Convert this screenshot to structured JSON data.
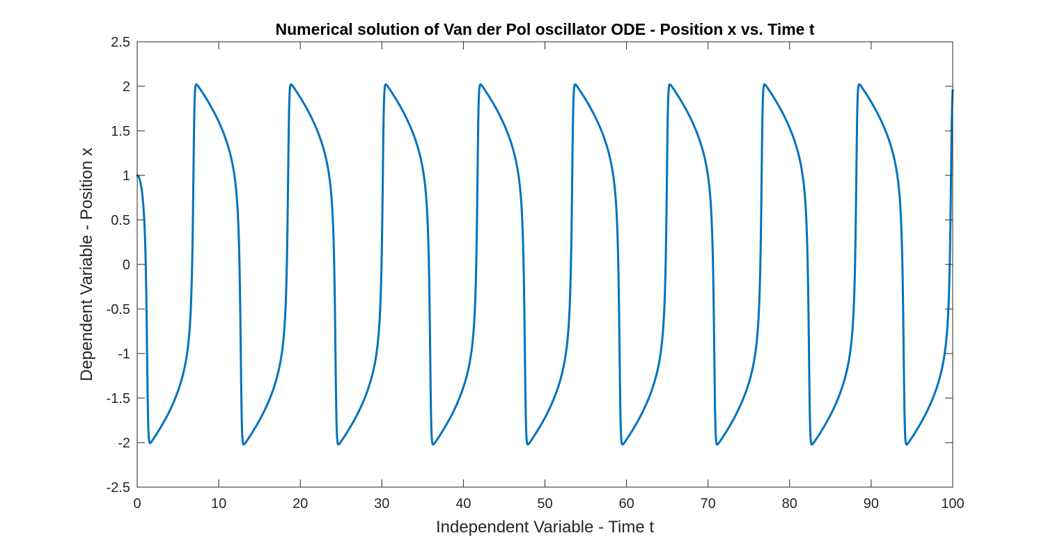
{
  "chart_data": {
    "type": "line",
    "title": "Numerical solution of Van der Pol oscillator ODE - Position x vs. Time t",
    "xlabel": "Independent Variable - Time t",
    "ylabel": "Dependent Variable - Position x",
    "xlim": [
      0,
      100
    ],
    "ylim": [
      -2.5,
      2.5
    ],
    "x_ticks": [
      0,
      10,
      20,
      30,
      40,
      50,
      60,
      70,
      80,
      90,
      100
    ],
    "y_ticks": [
      -2.5,
      -2,
      -1.5,
      -1,
      -0.5,
      0,
      0.5,
      1,
      1.5,
      2,
      2.5
    ],
    "x_tick_labels": [
      "0",
      "10",
      "20",
      "30",
      "40",
      "50",
      "60",
      "70",
      "80",
      "90",
      "100"
    ],
    "y_tick_labels": [
      "-2.5",
      "-2",
      "-1.5",
      "-1",
      "-0.5",
      "0",
      "0.5",
      "1",
      "1.5",
      "2",
      "2.5"
    ],
    "grid": false,
    "box": true,
    "colors": {
      "series": "#0072BD",
      "axes": "#262626",
      "background": "#ffffff"
    },
    "series": [
      {
        "mu": 5,
        "initial_conditions": {
          "x0": 1,
          "v0": 0
        },
        "t_range": [
          0,
          100
        ],
        "points": [
          [
            0,
            1
          ],
          [
            0.7,
            -2.3
          ],
          [
            8.7,
            2.02
          ],
          [
            14.5,
            -2.02
          ],
          [
            20.3,
            2.02
          ],
          [
            26.1,
            -2.02
          ],
          [
            32.0,
            2.02
          ],
          [
            37.8,
            -2.02
          ],
          [
            43.6,
            2.02
          ],
          [
            49.3,
            -2.02
          ],
          [
            55.2,
            2.02
          ],
          [
            61.0,
            -2.02
          ],
          [
            66.8,
            2.02
          ],
          [
            72.6,
            -2.02
          ],
          [
            78.5,
            2.02
          ],
          [
            84.3,
            -2.02
          ],
          [
            90.1,
            2.02
          ],
          [
            95.9,
            -2.02
          ],
          [
            100,
            -1.22
          ]
        ]
      }
    ]
  }
}
